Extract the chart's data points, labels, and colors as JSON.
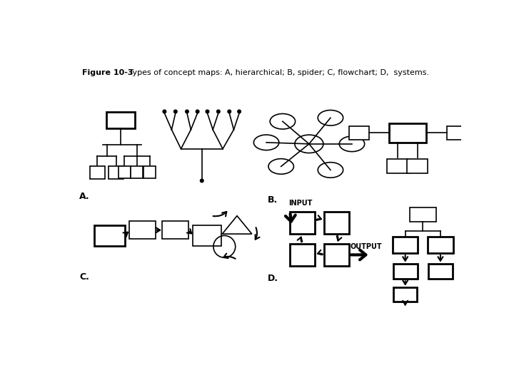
{
  "title_bold": "Figure 10-3",
  "title_rest": "   Types of concept maps: A, hierarchical; B, spider; C, flowchart; D,  systems.",
  "bg_color": "#ffffff",
  "label_A": "A.",
  "label_B": "B.",
  "label_C": "C.",
  "label_D": "D."
}
